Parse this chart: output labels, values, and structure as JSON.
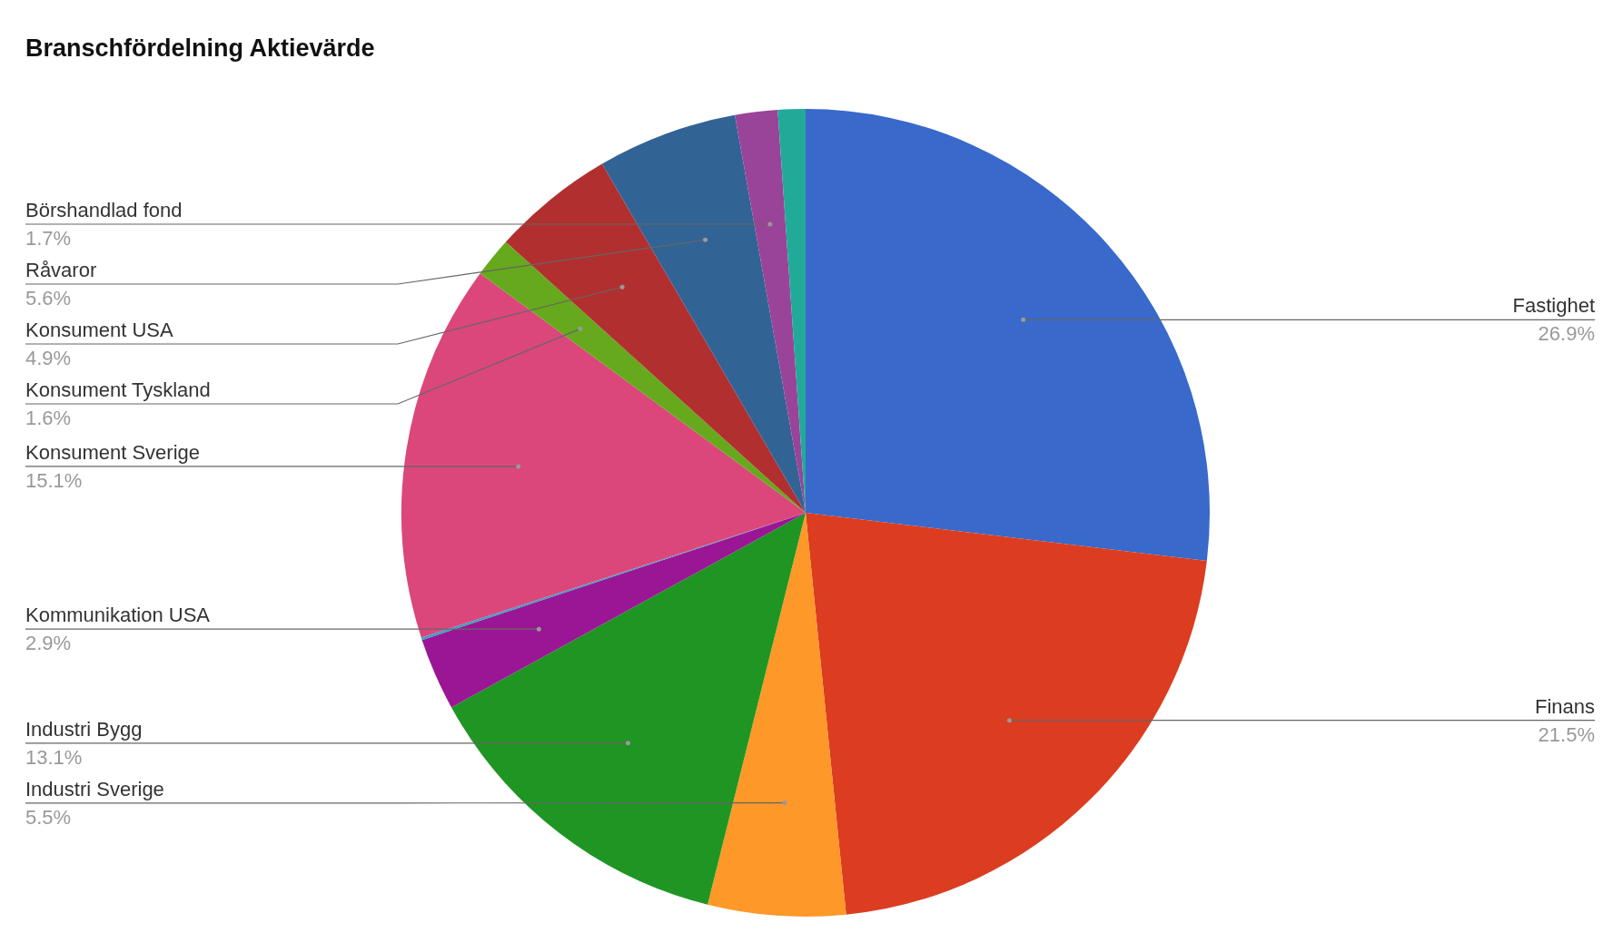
{
  "chart_data": {
    "type": "pie",
    "title": "Branschfördelning Aktievärde",
    "categories": [
      "Fastighet",
      "Finans",
      "Industri Sverige",
      "Industri Bygg",
      "Kommunikation USA",
      null,
      "Konsument Sverige",
      "Konsument Tyskland",
      "Konsument USA",
      "Råvaror",
      "Börshandlad fond",
      null
    ],
    "values": [
      26.9,
      21.5,
      5.5,
      13.1,
      2.9,
      0.1,
      15.1,
      1.6,
      4.9,
      5.6,
      1.7,
      1.1
    ],
    "value_labels": [
      "26.9%",
      "21.5%",
      "5.5%",
      "13.1%",
      "2.9%",
      null,
      "15.1%",
      "1.6%",
      "4.9%",
      "5.6%",
      "1.7%",
      null
    ],
    "colors": [
      "#3869cb",
      "#dc3c20",
      "#fe9829",
      "#1f9523",
      "#9a1694",
      "#3aa0c8",
      "#db477a",
      "#66a91d",
      "#b22f30",
      "#326395",
      "#994499",
      "#22aa99"
    ],
    "legend": false
  }
}
